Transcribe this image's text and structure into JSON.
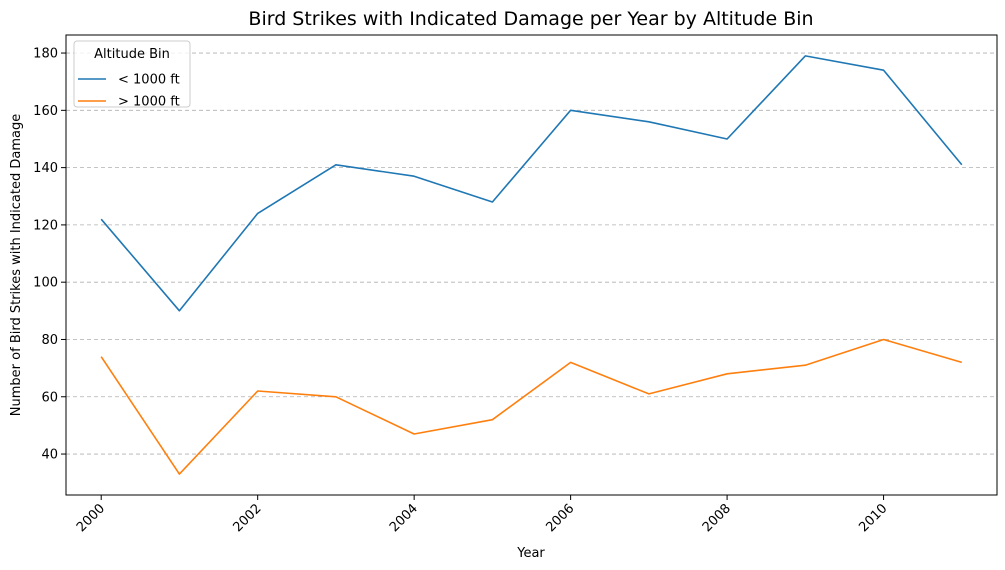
{
  "chart_data": {
    "type": "line",
    "title": "Bird Strikes with Indicated Damage per Year by Altitude Bin",
    "xlabel": "Year",
    "ylabel": "Number of Bird Strikes with Indicated Damage",
    "x": [
      2000,
      2001,
      2002,
      2003,
      2004,
      2005,
      2006,
      2007,
      2008,
      2009,
      2010,
      2011
    ],
    "xticks": [
      "2000",
      "2002",
      "2004",
      "2006",
      "2008",
      "2010"
    ],
    "yticks": [
      "40",
      "60",
      "80",
      "100",
      "120",
      "140",
      "160",
      "180"
    ],
    "xlim": [
      1999.55,
      2011.45
    ],
    "ylim": [
      25.7,
      186.3
    ],
    "grid": "y-dashed",
    "legend": {
      "title": "Altitude Bin",
      "placement": "top-left"
    },
    "series": [
      {
        "name": "< 1000 ft",
        "color": "#1f77b4",
        "values": [
          122,
          90,
          124,
          141,
          137,
          128,
          160,
          156,
          150,
          179,
          174,
          141
        ]
      },
      {
        "name": "> 1000 ft",
        "color": "#ff7f0e",
        "values": [
          74,
          33,
          62,
          60,
          47,
          52,
          72,
          61,
          68,
          71,
          80,
          72
        ]
      }
    ]
  }
}
